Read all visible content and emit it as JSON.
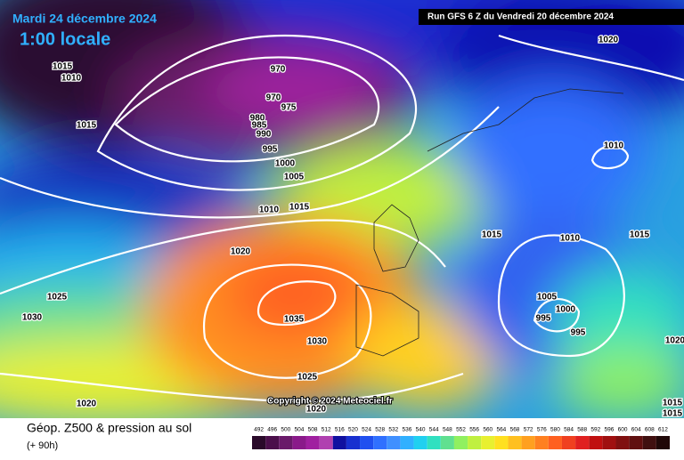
{
  "header": {
    "date": "Mardi 24 décembre 2024",
    "time": "1:00 locale",
    "run": "Run GFS 6 Z du Vendredi 20 décembre 2024"
  },
  "copyright": "Copyright © 2024 Meteociel.fr",
  "footer": {
    "title": "Géop. Z500 & pression au sol",
    "lead": "(+ 90h)"
  },
  "scale": {
    "labels": [
      492,
      496,
      500,
      504,
      508,
      512,
      516,
      520,
      524,
      528,
      532,
      536,
      540,
      544,
      548,
      552,
      556,
      560,
      564,
      568,
      572,
      576,
      580,
      584,
      588,
      592,
      596,
      600,
      604,
      608,
      612
    ]
  },
  "isobars": [
    1015,
    1010,
    1015,
    970,
    970,
    975,
    980,
    985,
    990,
    995,
    1000,
    1005,
    1010,
    1015,
    1020,
    1020,
    1010,
    1015,
    1010,
    1015,
    1005,
    1000,
    995,
    995,
    1025,
    1030,
    1035,
    1030,
    1025,
    1020,
    1020,
    1020,
    1015,
    1015
  ]
}
